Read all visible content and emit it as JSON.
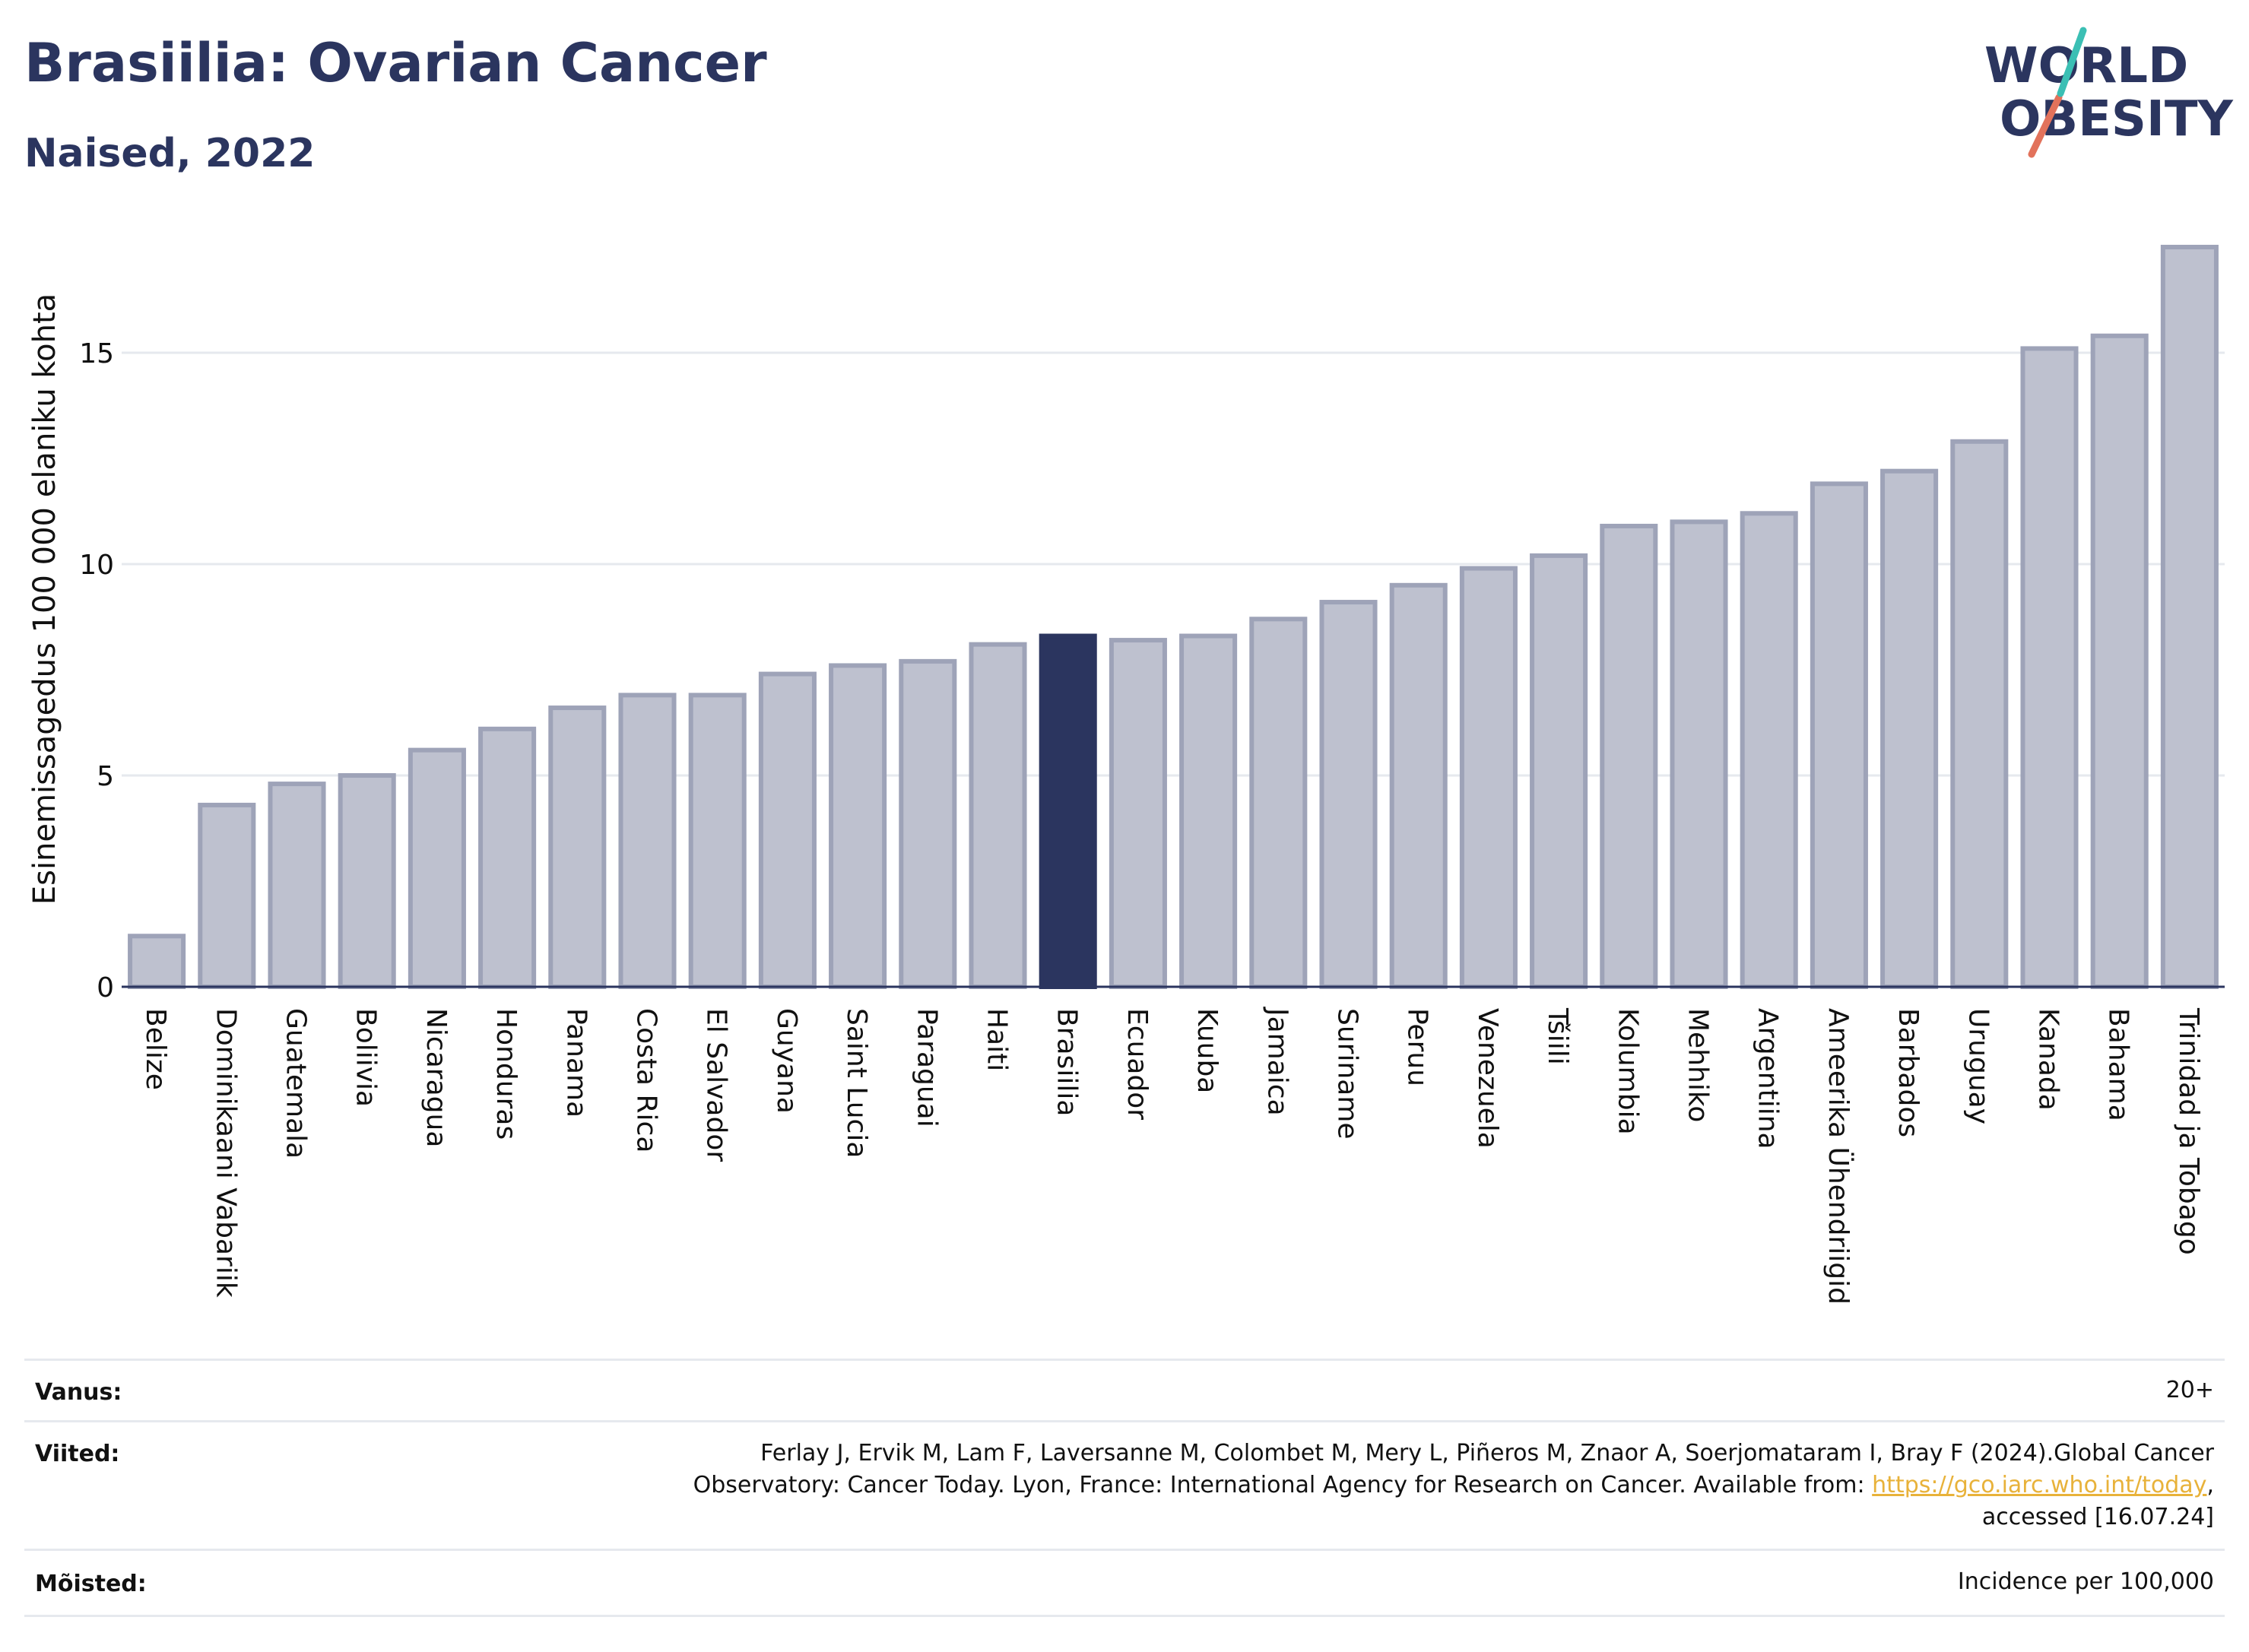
{
  "header": {
    "title": "Brasiilia: Ovarian Cancer",
    "subtitle": "Naised, 2022"
  },
  "logo": {
    "line1": "WORLD",
    "line2": "OBESITY",
    "accent_teal": "#3bbfb4",
    "accent_coral": "#e2725b"
  },
  "colors": {
    "highlight": "#2b355f",
    "bar": "#bec1cf",
    "bar_edge": "#9ea3b8",
    "grid": "#e6e9ee"
  },
  "chart_data": {
    "type": "bar",
    "ylabel": "Esinemissagedus 100 000 elaniku kohta",
    "ylim": [
      0,
      18
    ],
    "yticks": [
      0,
      5,
      10,
      15
    ],
    "grid": true,
    "highlight": "Brasiilia",
    "categories": [
      "Belize",
      "Dominikaani Vabariik",
      "Guatemala",
      "Boliivia",
      "Nicaragua",
      "Honduras",
      "Panama",
      "Costa Rica",
      "El Salvador",
      "Guyana",
      "Saint Lucia",
      "Paraguai",
      "Haiti",
      "Brasiilia",
      "Ecuador",
      "Kuuba",
      "Jamaica",
      "Suriname",
      "Peruu",
      "Venezuela",
      "Tšiili",
      "Kolumbia",
      "Mehhiko",
      "Argentiina",
      "Ameerika Ühendriigid",
      "Barbados",
      "Uruguay",
      "Kanada",
      "Bahama",
      "Trinidad ja Tobago"
    ],
    "values": [
      1.2,
      4.3,
      4.8,
      5.0,
      5.6,
      6.1,
      6.6,
      6.9,
      6.9,
      7.4,
      7.6,
      7.7,
      8.1,
      8.3,
      8.2,
      8.3,
      8.7,
      9.1,
      9.5,
      9.9,
      10.2,
      10.9,
      11.0,
      11.2,
      11.9,
      12.2,
      12.9,
      15.1,
      15.4,
      17.5
    ]
  },
  "meta": {
    "age_label": "Vanus:",
    "age_value": "20+",
    "refs_label": "Viited:",
    "refs_line1": "Ferlay J, Ervik M, Lam F, Laversanne M, Colombet M, Mery L, Piñeros M, Znaor A, Soerjomataram I, Bray F (2024).Global Cancer",
    "refs_line2_pre": "Observatory: Cancer Today. Lyon, France: International Agency for Research on Cancer. Available from: ",
    "refs_link": "https://gco.iarc.who.int/today",
    "refs_line2_post": ",",
    "refs_line3": "accessed [16.07.24]",
    "defs_label": "Mõisted:",
    "defs_value": "Incidence per 100,000"
  }
}
